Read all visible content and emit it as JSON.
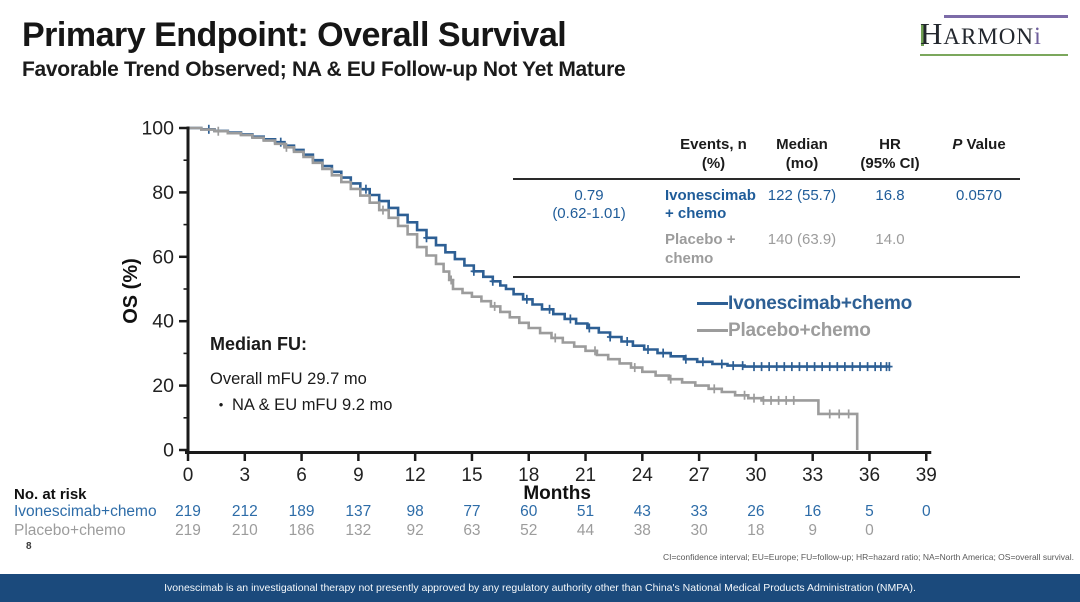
{
  "header": {
    "title": "Primary Endpoint: Overall Survival",
    "subtitle": "Favorable Trend Observed; NA & EU Follow-up Not Yet Mature"
  },
  "logo": {
    "cap": "H",
    "smallcaps": "ARMON",
    "i_letter": "i"
  },
  "colors": {
    "ivonescimab_blue": "#2d5f94",
    "text_blue": "#1f5c99",
    "placebo_gray": "#9c9c9c",
    "banner_navy": "#1b4a7c",
    "axis_black": "#1a1a1a"
  },
  "chart_data": {
    "type": "line",
    "subtype": "kaplan-meier-step",
    "title": "",
    "xlabel": "Months",
    "ylabel": "OS (%)",
    "xlim": [
      0,
      39
    ],
    "ylim": [
      0,
      100
    ],
    "x_ticks": [
      0,
      3,
      6,
      9,
      12,
      15,
      18,
      21,
      24,
      27,
      30,
      33,
      36,
      39
    ],
    "y_ticks": [
      0,
      20,
      40,
      60,
      80,
      100
    ],
    "y_minor_ticks": [
      10,
      30,
      50,
      70,
      90
    ],
    "grid": false,
    "legend_position": "right-middle",
    "series": [
      {
        "name": "Ivonescimab+chemo",
        "color": "#2d5f94",
        "median_months": 16.8,
        "points": [
          [
            0,
            100
          ],
          [
            0.7,
            99.6
          ],
          [
            1.4,
            99.1
          ],
          [
            2.1,
            98.6
          ],
          [
            2.8,
            98.0
          ],
          [
            3.4,
            97.3
          ],
          [
            4.0,
            96.5
          ],
          [
            4.6,
            95.6
          ],
          [
            5.1,
            94.5
          ],
          [
            5.6,
            93.2
          ],
          [
            6.1,
            91.7
          ],
          [
            6.6,
            90.0
          ],
          [
            7.1,
            88.2
          ],
          [
            7.6,
            86.4
          ],
          [
            8.1,
            84.6
          ],
          [
            8.6,
            82.8
          ],
          [
            9.1,
            81.0
          ],
          [
            9.6,
            79.2
          ],
          [
            10.1,
            77.3
          ],
          [
            10.6,
            75.2
          ],
          [
            11.1,
            73.0
          ],
          [
            11.6,
            70.7
          ],
          [
            12.1,
            68.3
          ],
          [
            12.6,
            65.9
          ],
          [
            13.1,
            63.6
          ],
          [
            13.6,
            61.4
          ],
          [
            14.1,
            59.3
          ],
          [
            14.6,
            57.3
          ],
          [
            15.1,
            55.5
          ],
          [
            15.6,
            53.8
          ],
          [
            16.1,
            52.4
          ],
          [
            16.5,
            51.1
          ],
          [
            16.8,
            50.0
          ],
          [
            17.2,
            48.4
          ],
          [
            17.7,
            46.8
          ],
          [
            18.2,
            45.2
          ],
          [
            18.7,
            43.7
          ],
          [
            19.3,
            42.2
          ],
          [
            19.9,
            40.7
          ],
          [
            20.5,
            39.3
          ],
          [
            21.1,
            37.9
          ],
          [
            21.7,
            36.5
          ],
          [
            22.3,
            35.1
          ],
          [
            22.9,
            33.7
          ],
          [
            23.5,
            32.4
          ],
          [
            24.1,
            31.2
          ],
          [
            24.8,
            30.1
          ],
          [
            25.5,
            29.1
          ],
          [
            26.2,
            28.2
          ],
          [
            26.9,
            27.4
          ],
          [
            27.7,
            26.7
          ],
          [
            28.5,
            26.2
          ],
          [
            29.4,
            25.9
          ],
          [
            37.1,
            25.9
          ]
        ],
        "censor_months": [
          1.1,
          4.9,
          9.4,
          12.6,
          15.1,
          16.1,
          17.9,
          19.1,
          20.2,
          21.2,
          22.3,
          23.2,
          24.3,
          25.1,
          26.3,
          27.2,
          28.2,
          28.8,
          29.3,
          29.9,
          30.3,
          30.7,
          31.1,
          31.5,
          31.9,
          32.3,
          32.7,
          33.1,
          33.5,
          33.9,
          34.3,
          34.7,
          35.1,
          35.5,
          35.9,
          36.3,
          36.6,
          36.9,
          37.05
        ]
      },
      {
        "name": "Placebo+chemo",
        "color": "#9c9c9c",
        "median_months": 14.0,
        "points": [
          [
            0,
            100
          ],
          [
            0.7,
            99.5
          ],
          [
            1.4,
            99.0
          ],
          [
            2.1,
            98.4
          ],
          [
            2.8,
            97.8
          ],
          [
            3.4,
            97.0
          ],
          [
            4.0,
            96.1
          ],
          [
            4.6,
            95.1
          ],
          [
            5.1,
            94.0
          ],
          [
            5.6,
            92.6
          ],
          [
            6.1,
            91.0
          ],
          [
            6.6,
            89.2
          ],
          [
            7.1,
            87.3
          ],
          [
            7.6,
            85.3
          ],
          [
            8.1,
            83.2
          ],
          [
            8.6,
            81.1
          ],
          [
            9.1,
            79.0
          ],
          [
            9.6,
            76.8
          ],
          [
            10.1,
            74.5
          ],
          [
            10.6,
            72.1
          ],
          [
            11.1,
            69.6
          ],
          [
            11.6,
            67.0
          ],
          [
            12.1,
            63.0
          ],
          [
            12.6,
            60.4
          ],
          [
            13.1,
            57.8
          ],
          [
            13.5,
            55.4
          ],
          [
            13.8,
            52.8
          ],
          [
            14.0,
            50.0
          ],
          [
            14.5,
            48.8
          ],
          [
            15.0,
            47.6
          ],
          [
            15.5,
            46.2
          ],
          [
            16.0,
            44.6
          ],
          [
            16.5,
            42.9
          ],
          [
            17.0,
            41.2
          ],
          [
            17.5,
            39.5
          ],
          [
            18.0,
            37.9
          ],
          [
            18.6,
            36.3
          ],
          [
            19.2,
            34.8
          ],
          [
            19.8,
            33.4
          ],
          [
            20.4,
            32.1
          ],
          [
            21.0,
            30.8
          ],
          [
            21.6,
            29.5
          ],
          [
            22.2,
            28.2
          ],
          [
            22.8,
            26.9
          ],
          [
            23.4,
            25.6
          ],
          [
            24.0,
            24.3
          ],
          [
            24.7,
            23.1
          ],
          [
            25.4,
            22.0
          ],
          [
            26.1,
            21.0
          ],
          [
            26.8,
            20.0
          ],
          [
            27.5,
            19.0
          ],
          [
            28.2,
            18.0
          ],
          [
            28.9,
            17.0
          ],
          [
            29.6,
            16.1
          ],
          [
            30.3,
            15.4
          ],
          [
            33.1,
            15.4
          ],
          [
            33.3,
            11.2
          ],
          [
            35.3,
            11.2
          ],
          [
            35.35,
            0
          ]
        ],
        "censor_months": [
          1.6,
          5.2,
          10.3,
          13.9,
          16.2,
          19.4,
          21.5,
          23.6,
          25.5,
          27.8,
          29.4,
          29.9,
          30.4,
          30.8,
          31.2,
          31.6,
          32.0,
          33.9,
          34.4,
          34.9
        ]
      }
    ]
  },
  "stats_table": {
    "headers": {
      "events_l1": "Events, n",
      "events_l2": "(%)",
      "median_l1": "Median",
      "median_l2": "(mo)",
      "hr_l1": "HR",
      "hr_l2": "(95% CI)",
      "p_italic": "P",
      "p_rest": " Value"
    },
    "rows": [
      {
        "label": "Ivonescimab + chemo",
        "events": "122 (55.7)",
        "median": "16.8"
      },
      {
        "label": "Placebo + chemo",
        "events": "140 (63.9)",
        "median": "14.0"
      }
    ],
    "hr_value": "0.79",
    "hr_ci": "(0.62-1.01)",
    "p_value": "0.0570"
  },
  "legend": {
    "items": [
      {
        "label": "Ivonescimab+chemo",
        "color": "#2d5f94"
      },
      {
        "label": "Placebo+chemo",
        "color": "#9c9c9c"
      }
    ]
  },
  "median_fu": {
    "heading": "Median FU:",
    "line1": "Overall mFU 29.7 mo",
    "bullet": "•",
    "line2": "NA & EU mFU 9.2 mo"
  },
  "at_risk": {
    "title": "No. at risk",
    "months": [
      0,
      3,
      6,
      9,
      12,
      15,
      18,
      21,
      24,
      27,
      30,
      33,
      36,
      39
    ],
    "rows": [
      {
        "label": "Ivonescimab+chemo",
        "style": "blue",
        "counts": [
          219,
          212,
          189,
          137,
          98,
          77,
          60,
          51,
          43,
          33,
          26,
          16,
          5,
          0
        ]
      },
      {
        "label": "Placebo+chemo",
        "style": "gray",
        "counts": [
          219,
          210,
          186,
          132,
          92,
          63,
          52,
          44,
          38,
          30,
          18,
          9,
          0
        ]
      }
    ]
  },
  "page_number": "8",
  "footnote": "CI=confidence interval; EU=Europe; FU=follow-up; HR=hazard ratio; NA=North America; OS=overall survival.",
  "banner": "Ivonescimab is an investigational therapy not presently approved by any regulatory authority other than China's National Medical Products Administration (NMPA)."
}
